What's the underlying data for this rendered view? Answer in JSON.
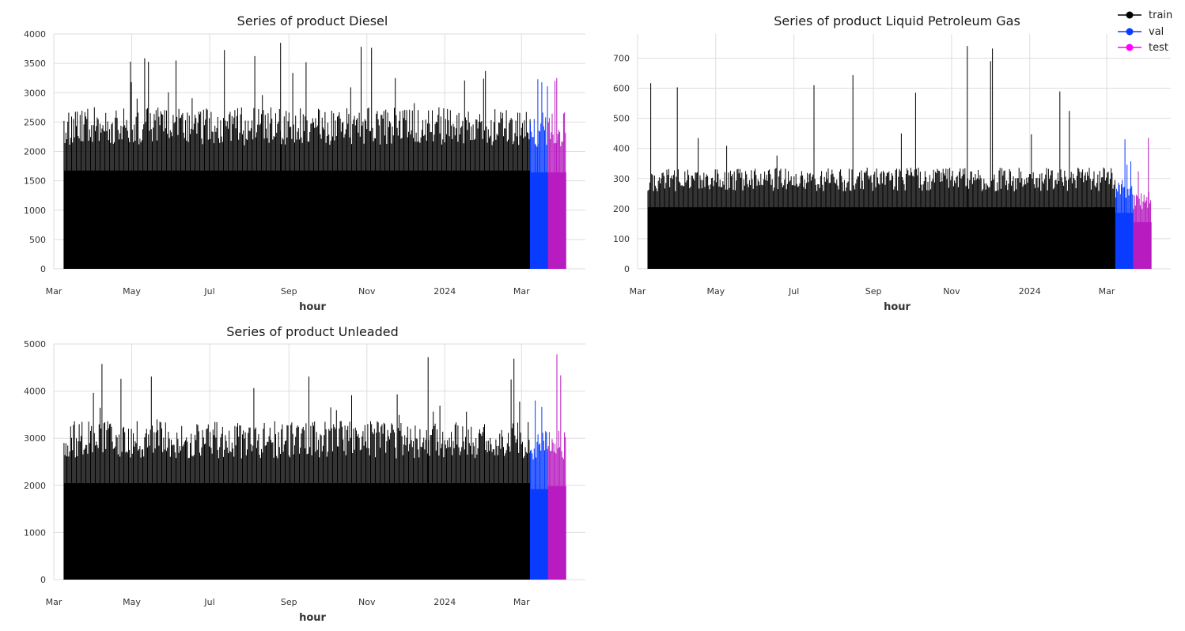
{
  "colors": {
    "train": "#000000",
    "val": "#0a3cff",
    "test": "#b81cc0",
    "grid": "#dddddd"
  },
  "legend": [
    {
      "key": "train",
      "label": "train",
      "color": "#000000"
    },
    {
      "key": "val",
      "label": "val",
      "color": "#0a3cff"
    },
    {
      "key": "test",
      "label": "test",
      "color": "#ff00ff"
    }
  ],
  "chart_data": [
    {
      "type": "line",
      "title": "Series of product Diesel",
      "xlabel": "hour",
      "ylabel": "",
      "ylim": [
        0,
        4000
      ],
      "yticks": [
        0,
        500,
        1000,
        1500,
        2000,
        2500,
        3000,
        3500,
        4000
      ],
      "xticks": [
        "Mar",
        "May",
        "Jul",
        "Sep",
        "Nov",
        "2024",
        "Mar"
      ],
      "x_range": [
        "2023-03-01",
        "2024-04-20"
      ],
      "segments": [
        {
          "name": "train",
          "start": "2023-03-09",
          "end": "2024-03-08",
          "typical_peak": 2700,
          "max": 3850
        },
        {
          "name": "val",
          "start": "2024-03-08",
          "end": "2024-03-22",
          "typical_peak": 2650,
          "max": 3230
        },
        {
          "name": "test",
          "start": "2024-03-22",
          "end": "2024-04-05",
          "typical_peak": 2650,
          "max": 3250
        }
      ],
      "legend": "top-right",
      "grid": true
    },
    {
      "type": "line",
      "title": "Series of product Liquid Petroleum Gas",
      "xlabel": "hour",
      "ylabel": "",
      "ylim": [
        0,
        780
      ],
      "yticks": [
        0,
        100,
        200,
        300,
        400,
        500,
        600,
        700
      ],
      "xticks": [
        "Mar",
        "May",
        "Jul",
        "Sep",
        "Nov",
        "2024",
        "Mar"
      ],
      "x_range": [
        "2023-03-01",
        "2024-04-20"
      ],
      "segments": [
        {
          "name": "train",
          "start": "2023-03-09",
          "end": "2024-03-08",
          "typical_peak": 330,
          "max": 740
        },
        {
          "name": "val",
          "start": "2024-03-08",
          "end": "2024-03-22",
          "typical_peak": 300,
          "max": 430
        },
        {
          "name": "test",
          "start": "2024-03-22",
          "end": "2024-04-05",
          "typical_peak": 250,
          "max": 435
        }
      ],
      "legend": "top-right",
      "grid": true
    },
    {
      "type": "line",
      "title": "Series of product Unleaded",
      "xlabel": "hour",
      "ylabel": "",
      "ylim": [
        0,
        5000
      ],
      "yticks": [
        0,
        1000,
        2000,
        3000,
        4000,
        5000
      ],
      "xticks": [
        "Mar",
        "May",
        "Jul",
        "Sep",
        "Nov",
        "2024",
        "Mar"
      ],
      "x_range": [
        "2023-03-01",
        "2024-04-20"
      ],
      "segments": [
        {
          "name": "train",
          "start": "2023-03-09",
          "end": "2024-03-08",
          "typical_peak": 3300,
          "max": 4720
        },
        {
          "name": "val",
          "start": "2024-03-08",
          "end": "2024-03-22",
          "typical_peak": 3100,
          "max": 3800
        },
        {
          "name": "test",
          "start": "2024-03-22",
          "end": "2024-04-05",
          "typical_peak": 3200,
          "max": 4780
        }
      ],
      "legend": "none",
      "grid": true
    }
  ]
}
